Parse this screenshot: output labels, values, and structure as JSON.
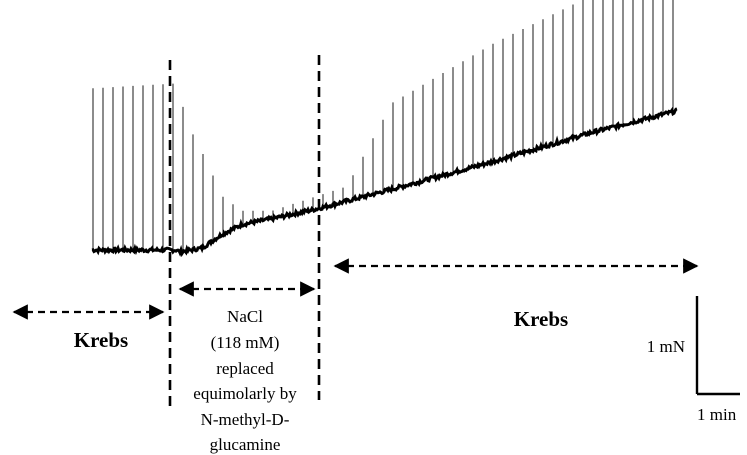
{
  "chart_data": {
    "type": "line",
    "series": [
      {
        "segment": "baseline",
        "points": [
          {
            "x": 0.0,
            "y": 0.0
          },
          {
            "x": 1.7,
            "y": 0.0
          },
          {
            "x": 1.75,
            "y": -0.02
          },
          {
            "x": 2.2,
            "y": 0.02
          },
          {
            "x": 2.6,
            "y": 0.16
          },
          {
            "x": 3.0,
            "y": 0.26
          },
          {
            "x": 3.6,
            "y": 0.32
          },
          {
            "x": 4.5,
            "y": 0.42
          },
          {
            "x": 6.0,
            "y": 0.62
          },
          {
            "x": 8.0,
            "y": 0.9
          },
          {
            "x": 10.0,
            "y": 1.2
          },
          {
            "x": 11.7,
            "y": 1.42
          }
        ]
      },
      {
        "segment": "contraction_peaks",
        "points": [
          {
            "x": 0.0,
            "y": 1.65
          },
          {
            "x": 1.7,
            "y": 1.7
          },
          {
            "x": 1.9,
            "y": 1.3
          },
          {
            "x": 2.3,
            "y": 0.9
          },
          {
            "x": 2.6,
            "y": 0.55
          },
          {
            "x": 3.0,
            "y": 0.4
          },
          {
            "x": 3.6,
            "y": 0.4
          },
          {
            "x": 4.5,
            "y": 0.55
          },
          {
            "x": 5.1,
            "y": 0.65
          },
          {
            "x": 6.0,
            "y": 1.5
          },
          {
            "x": 8.0,
            "y": 2.1
          },
          {
            "x": 10.0,
            "y": 2.6
          },
          {
            "x": 11.7,
            "y": 2.95
          }
        ]
      }
    ],
    "phases": [
      {
        "name": "Krebs",
        "x": [
          0.0,
          1.72
        ]
      },
      {
        "name": "NaCl (118 mM) replaced equimolarly by N-methyl-D-glucamine",
        "x": [
          1.72,
          5.1
        ]
      },
      {
        "name": "Krebs",
        "x": [
          5.1,
          11.7
        ]
      }
    ],
    "contraction_interval_min": 0.2
  },
  "labels": {
    "krebs_left": "Krebs",
    "krebs_right": "Krebs",
    "nacl_line1": "NaCl",
    "nacl_line2": "(118 mM)",
    "nacl_line3": "replaced",
    "nacl_line4": "equimolarly by",
    "nacl_line5": "N-methyl-D-",
    "nacl_line6": "glucamine",
    "scale_y": "1 mN",
    "scale_x": "1 min"
  }
}
